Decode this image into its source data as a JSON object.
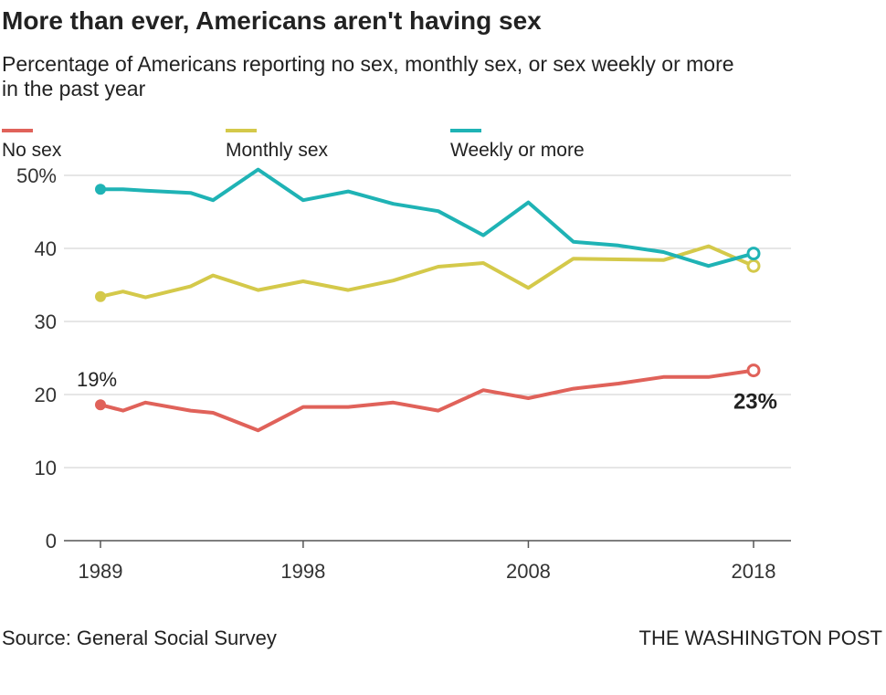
{
  "chart_data": {
    "type": "line",
    "title": "More than ever, Americans aren't having sex",
    "subtitle": [
      "Percentage of Americans reporting no sex, monthly sex, or sex weekly or more",
      "in the past year"
    ],
    "x": [
      1989,
      1990,
      1991,
      1993,
      1994,
      1996,
      1998,
      2000,
      2002,
      2004,
      2006,
      2008,
      2010,
      2012,
      2014,
      2016,
      2018
    ],
    "series": [
      {
        "name": "No sex",
        "color": "#e0625a",
        "values": [
          18.6,
          17.8,
          18.9,
          17.8,
          17.5,
          15.1,
          18.3,
          18.3,
          18.9,
          17.8,
          20.6,
          19.5,
          20.8,
          21.5,
          22.4,
          22.4,
          23.3
        ],
        "value_labels": [
          "19%",
          null,
          null,
          null,
          null,
          null,
          null,
          null,
          null,
          null,
          null,
          null,
          null,
          null,
          null,
          null,
          "23%"
        ]
      },
      {
        "name": "Monthly sex",
        "color": "#d4c94a",
        "values": [
          33.4,
          34.1,
          33.3,
          34.8,
          36.3,
          34.3,
          35.5,
          34.3,
          35.6,
          37.5,
          38.0,
          34.6,
          38.6,
          38.5,
          38.4,
          40.3,
          37.6
        ]
      },
      {
        "name": "Weekly or more",
        "color": "#1fb3b5",
        "values": [
          48.1,
          48.1,
          47.9,
          47.6,
          46.6,
          50.8,
          46.6,
          47.8,
          46.1,
          45.1,
          41.8,
          46.3,
          40.9,
          40.4,
          39.5,
          37.6,
          39.3
        ]
      }
    ],
    "xlim": [
      1989,
      2018
    ],
    "xticks": [
      1989,
      1998,
      2008,
      2018
    ],
    "ylim": [
      0,
      50
    ],
    "yticks": [
      0,
      10,
      20,
      30,
      {
        "value": 50,
        "label": "50%"
      },
      40
    ],
    "grid": true,
    "source": "Source: General Social Survey",
    "credit": "THE WASHINGTON POST"
  }
}
